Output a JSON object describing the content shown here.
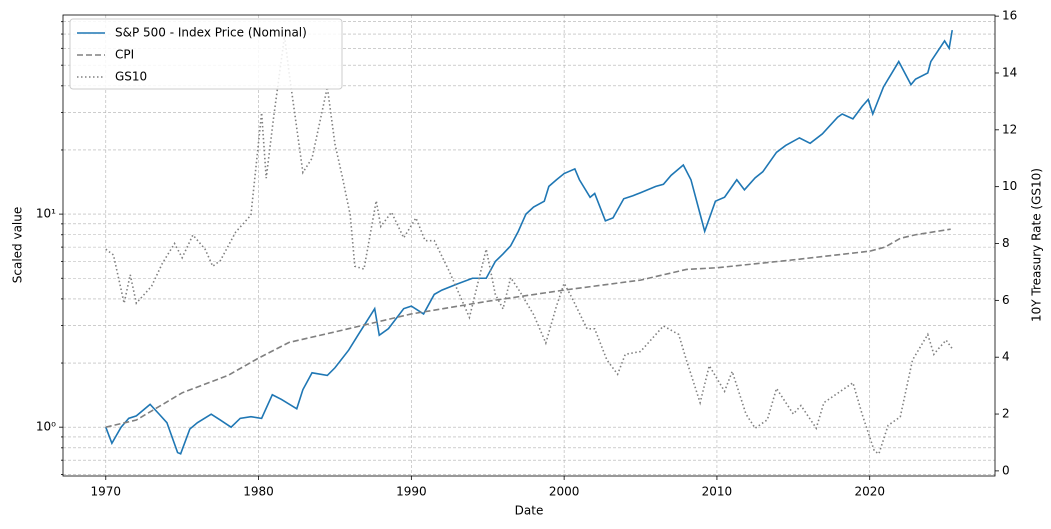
{
  "chart_data": {
    "type": "line",
    "x_label": "Date",
    "y_label": "Scaled value",
    "y2_label": "10Y Treasury Rate (GS10)",
    "xlim": [
      1967.2,
      2028.2
    ],
    "xticks": [
      1970,
      1980,
      1990,
      2000,
      2010,
      2020
    ],
    "ylim": [
      0.59,
      86
    ],
    "yscale": "log",
    "yticks": [
      {
        "value": 1,
        "label": "10⁰"
      },
      {
        "value": 10,
        "label": "10¹"
      }
    ],
    "yminorticks": [
      0.6,
      0.7,
      0.8,
      0.9,
      2,
      3,
      4,
      5,
      6,
      7,
      8,
      9,
      20,
      30,
      40,
      50,
      60,
      70,
      80
    ],
    "y2lim": [
      -0.18,
      16.04
    ],
    "y2ticks": [
      0,
      2,
      4,
      6,
      8,
      10,
      12,
      14,
      16
    ],
    "grid": true,
    "legend": "upper-left",
    "series": [
      {
        "name": "S&P 500 - Index Price (Nominal)",
        "color": "#1f77b4",
        "linestyle": "solid",
        "axis": "y",
        "x": [
          1970.0,
          1970.4,
          1971.0,
          1971.5,
          1972.0,
          1972.9,
          1973.5,
          1974.0,
          1974.7,
          1974.9,
          1975.5,
          1976.0,
          1976.9,
          1977.5,
          1978.2,
          1978.8,
          1979.5,
          1980.2,
          1980.9,
          1981.5,
          1982.5,
          1982.9,
          1983.5,
          1984.5,
          1985.0,
          1985.9,
          1986.5,
          1987.6,
          1987.9,
          1988.5,
          1989.5,
          1990.0,
          1990.8,
          1991.5,
          1992.0,
          1993.0,
          1994.0,
          1994.9,
          1995.5,
          1996.0,
          1996.5,
          1997.0,
          1997.5,
          1998.0,
          1998.7,
          1999.0,
          1999.5,
          2000.0,
          2000.7,
          2001.0,
          2001.7,
          2002.0,
          2002.7,
          2003.2,
          2003.9,
          2004.5,
          2005.0,
          2006.0,
          2006.5,
          2007.0,
          2007.8,
          2008.3,
          2008.9,
          2009.2,
          2009.9,
          2010.5,
          2011.3,
          2011.8,
          2012.5,
          2013.0,
          2013.9,
          2014.5,
          2015.4,
          2016.1,
          2016.9,
          2017.9,
          2018.2,
          2018.9,
          2019.5,
          2019.9,
          2020.2,
          2020.9,
          2021.9,
          2022.7,
          2023.0,
          2023.8,
          2024.0,
          2024.9,
          2025.2,
          2025.4
        ],
        "values": [
          1.0,
          0.84,
          1.0,
          1.1,
          1.13,
          1.28,
          1.15,
          1.05,
          0.76,
          0.75,
          0.98,
          1.05,
          1.15,
          1.08,
          1.0,
          1.1,
          1.12,
          1.1,
          1.42,
          1.35,
          1.22,
          1.5,
          1.8,
          1.75,
          1.9,
          2.3,
          2.7,
          3.6,
          2.7,
          2.9,
          3.6,
          3.7,
          3.4,
          4.2,
          4.4,
          4.7,
          5.0,
          5.0,
          6.0,
          6.5,
          7.1,
          8.3,
          10.0,
          10.8,
          11.5,
          13.5,
          14.5,
          15.5,
          16.3,
          14.5,
          12.0,
          12.5,
          9.3,
          9.6,
          11.8,
          12.2,
          12.6,
          13.5,
          13.8,
          15.2,
          17.0,
          14.5,
          10.0,
          8.3,
          11.5,
          12.0,
          14.5,
          13.0,
          14.8,
          15.8,
          19.5,
          21.0,
          22.8,
          21.5,
          23.8,
          28.5,
          29.5,
          28.0,
          32.0,
          34.5,
          29.5,
          39.5,
          52.0,
          40.5,
          43.0,
          46.0,
          52.0,
          65.0,
          60.0,
          73.0
        ]
      },
      {
        "name": "CPI",
        "color": "#808080",
        "linestyle": "dashed",
        "axis": "y",
        "x": [
          1970,
          1972,
          1975,
          1978,
          1980,
          1982,
          1985,
          1990,
          1995,
          2000,
          2005,
          2008,
          2010,
          2015,
          2020,
          2021,
          2022,
          2023,
          2025.3
        ],
        "values": [
          1.0,
          1.08,
          1.45,
          1.75,
          2.11,
          2.5,
          2.8,
          3.4,
          3.9,
          4.4,
          4.9,
          5.5,
          5.6,
          6.1,
          6.7,
          7.0,
          7.7,
          8.0,
          8.5
        ]
      },
      {
        "name": "GS10",
        "color": "#808080",
        "linestyle": "dotted",
        "axis": "y2",
        "x": [
          1970.0,
          1970.5,
          1971.2,
          1971.6,
          1972.0,
          1973.0,
          1973.7,
          1974.5,
          1975.0,
          1975.7,
          1976.5,
          1977.0,
          1977.5,
          1978.5,
          1979.5,
          1980.2,
          1980.5,
          1981.0,
          1981.7,
          1982.0,
          1982.9,
          1983.5,
          1984.5,
          1985.0,
          1985.5,
          1986.0,
          1986.3,
          1986.9,
          1987.7,
          1988.0,
          1988.7,
          1989.5,
          1990.3,
          1990.9,
          1991.5,
          1992.5,
          1993.8,
          1994.9,
          1995.5,
          1996.0,
          1996.5,
          1997.0,
          1998.0,
          1998.8,
          1999.5,
          2000.0,
          2000.5,
          2001.5,
          2002.0,
          2002.8,
          2003.5,
          2004.0,
          2005.0,
          2006.5,
          2007.5,
          2008.0,
          2008.9,
          2009.5,
          2010.5,
          2011.0,
          2011.9,
          2012.5,
          2013.3,
          2013.9,
          2015.0,
          2015.5,
          2016.5,
          2017.0,
          2018.9,
          2019.5,
          2020.3,
          2020.6,
          2021.2,
          2022.0,
          2022.8,
          2023.8,
          2024.2,
          2024.5,
          2025.0,
          2025.4
        ],
        "values": [
          7.8,
          7.6,
          5.9,
          6.9,
          5.9,
          6.5,
          7.3,
          8.0,
          7.5,
          8.3,
          7.8,
          7.2,
          7.4,
          8.4,
          9.0,
          12.6,
          10.3,
          12.5,
          15.3,
          14.0,
          10.5,
          11.0,
          13.5,
          11.5,
          10.3,
          9.0,
          7.2,
          7.1,
          9.5,
          8.6,
          9.1,
          8.2,
          8.9,
          8.1,
          8.1,
          7.0,
          5.4,
          7.8,
          6.2,
          5.7,
          6.8,
          6.4,
          5.5,
          4.5,
          5.8,
          6.6,
          6.1,
          5.0,
          5.0,
          3.9,
          3.4,
          4.1,
          4.2,
          5.1,
          4.8,
          3.9,
          2.4,
          3.7,
          2.8,
          3.5,
          2.0,
          1.5,
          1.8,
          2.9,
          2.0,
          2.3,
          1.5,
          2.4,
          3.1,
          2.0,
          0.7,
          0.6,
          1.6,
          1.9,
          3.9,
          4.8,
          4.1,
          4.3,
          4.6,
          4.3
        ]
      }
    ]
  }
}
